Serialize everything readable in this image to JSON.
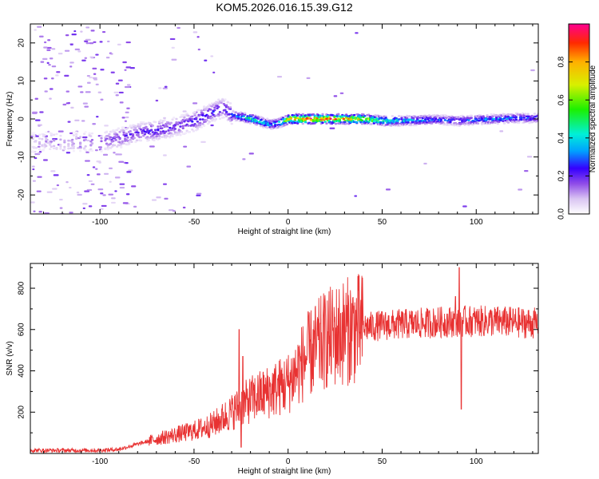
{
  "title": "KOM5.2026.016.15.39.G12",
  "colors": {
    "snr_line": "#e83232",
    "axis": "#000000"
  },
  "chart_data": [
    {
      "type": "heatmap",
      "name": "spectrogram",
      "xlabel": "Height of straight line (km)",
      "ylabel": "Frequency (Hz)",
      "xlim": [
        -137,
        133
      ],
      "ylim": [
        -25,
        25
      ],
      "xticks": [
        -100,
        -50,
        0,
        50,
        100
      ],
      "yticks": [
        -20,
        -10,
        0,
        10,
        20
      ],
      "colorbar": {
        "label": "Normalized spectral amplitude",
        "range": [
          0,
          1
        ],
        "ticks": [
          0.0,
          0.2,
          0.4,
          0.6,
          0.8
        ]
      },
      "ridge": {
        "description": "dominant frequency trace vs height",
        "heights": [
          -137,
          -100,
          -90,
          -80,
          -70,
          -60,
          -50,
          -40,
          -35,
          -30,
          -20,
          -10,
          -5,
          0,
          10,
          20,
          30,
          40,
          50,
          60,
          70,
          80,
          90,
          100,
          110,
          120,
          133
        ],
        "frequency": [
          -6,
          -6,
          -5,
          -3.5,
          -3,
          -2,
          -0.5,
          2,
          3,
          1,
          0,
          -1.5,
          -1,
          0,
          0,
          0,
          0,
          0,
          -0.5,
          -0.5,
          -0.3,
          -0.2,
          -0.5,
          -0.2,
          0,
          0.2,
          0.3
        ],
        "amplitude": [
          0.1,
          0.15,
          0.2,
          0.2,
          0.25,
          0.2,
          0.25,
          0.25,
          0.25,
          0.3,
          0.5,
          0.35,
          0.45,
          0.7,
          0.9,
          0.85,
          0.8,
          0.7,
          0.5,
          0.4,
          0.35,
          0.3,
          0.3,
          0.3,
          0.35,
          0.3,
          0.3
        ]
      }
    },
    {
      "type": "line",
      "name": "snr",
      "xlabel": "Height of straight line (km)",
      "ylabel": "SNR (v/v)",
      "xlim": [
        -137,
        133
      ],
      "ylim": [
        0,
        920
      ],
      "xticks": [
        -100,
        -50,
        0,
        50,
        100
      ],
      "yticks": [
        200,
        400,
        600,
        800
      ],
      "series": [
        {
          "name": "SNR",
          "envelope_x": [
            -137,
            -100,
            -90,
            -80,
            -70,
            -60,
            -50,
            -40,
            -30,
            -20,
            -10,
            0,
            10,
            20,
            30,
            40,
            50,
            60,
            70,
            80,
            90,
            100,
            110,
            120,
            133
          ],
          "envelope_mean": [
            15,
            15,
            20,
            45,
            70,
            90,
            110,
            140,
            200,
            260,
            300,
            340,
            470,
            550,
            590,
            610,
            620,
            625,
            630,
            635,
            640,
            640,
            640,
            635,
            630
          ],
          "spikes": [
            {
              "x": -26,
              "y": 600
            },
            {
              "x": -25,
              "y": 30
            },
            {
              "x": -24,
              "y": 470
            },
            {
              "x": 91,
              "y": 900
            },
            {
              "x": 92,
              "y": 215
            },
            {
              "x": 89,
              "y": 760
            }
          ]
        }
      ]
    }
  ]
}
